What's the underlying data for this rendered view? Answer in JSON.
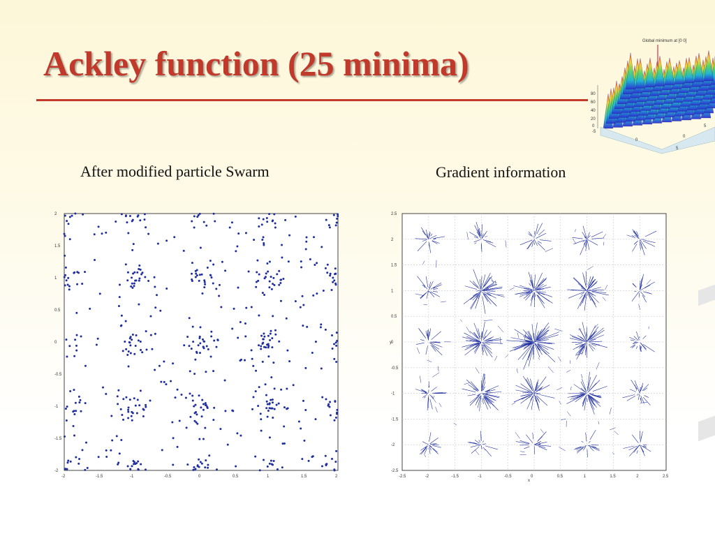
{
  "slide": {
    "title": "Ackley function (25 minima)",
    "caption_left": "After modified particle Swarm",
    "caption_right": "Gradient information",
    "title_color": "#c0392b"
  },
  "inset": {
    "title": "Global minimum at [0 0]",
    "z_ticks": [
      "80",
      "60",
      "40",
      "20",
      "0"
    ],
    "x_ticks": [
      "-5",
      "0",
      "5"
    ],
    "y_ticks": [
      "0",
      "5"
    ]
  },
  "chart_data": [
    {
      "type": "scatter",
      "xlim": [
        -2,
        2
      ],
      "ylim": [
        -2,
        2
      ],
      "xticks": [
        "-2",
        "-1.5",
        "-1",
        "-0.5",
        "0",
        "0.5",
        "1",
        "1.5",
        "2"
      ],
      "yticks": [
        "2",
        "1.5",
        "1",
        "0.5",
        "0",
        "-0.5",
        "-1",
        "-1.5",
        "-2"
      ],
      "point_color": "#1f2e9e",
      "cluster_centers": [
        -2,
        -1,
        0,
        1,
        2
      ],
      "cluster_spread": 0.2,
      "background_points": 260,
      "points_per_cluster": 22
    },
    {
      "type": "quiver",
      "xlim": [
        -2.5,
        2.5
      ],
      "ylim": [
        -2.5,
        2.5
      ],
      "xticks": [
        "-2.5",
        "-2",
        "-1.5",
        "-1",
        "-0.5",
        "0",
        "0.5",
        "1",
        "1.5",
        "2",
        "2.5"
      ],
      "yticks": [
        "2.5",
        "2",
        "1.5",
        "1",
        "0.5",
        "0",
        "-0.5",
        "-1",
        "-1.5",
        "-2",
        "-2.5"
      ],
      "xlabel": "x",
      "ylabel": "y",
      "line_color": "#1f2e9e",
      "minima": [
        -2,
        -1,
        0,
        1,
        2
      ],
      "grid": true
    }
  ]
}
